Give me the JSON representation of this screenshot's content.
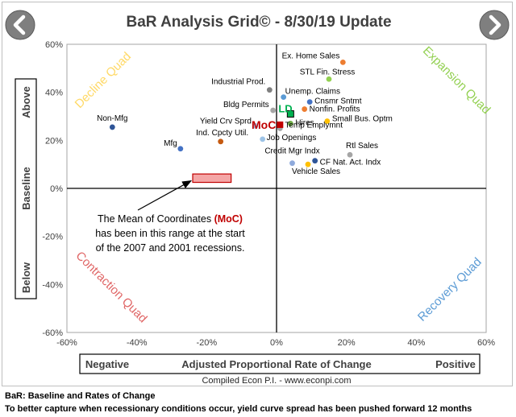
{
  "chart_data": {
    "type": "scatter",
    "title": "BaR Analysis Grid© - 8/30/19 Update",
    "xlabel": "Adjusted Proportional Rate of Change",
    "x_left_label": "Negative",
    "x_right_label": "Positive",
    "ylabel": "Baseline",
    "y_top_label": "Above",
    "y_bottom_label": "Below",
    "xlim": [
      -60,
      60
    ],
    "ylim": [
      -60,
      60
    ],
    "x_ticks": [
      "-60%",
      "-40%",
      "-20%",
      "0%",
      "20%",
      "40%",
      "60%"
    ],
    "y_ticks": [
      "60%",
      "40%",
      "20%",
      "0%",
      "-20%",
      "-40%",
      "-60%"
    ],
    "credit": "Compiled Econ P.I. - www.econpi.com",
    "quadrants": [
      {
        "label": "Expansion Quad",
        "color": "#92d050"
      },
      {
        "label": "Decline Quad",
        "color": "#ffd966"
      },
      {
        "label": "Contraction Quad",
        "color": "#e06666"
      },
      {
        "label": "Recovery Quad",
        "color": "#5b9bd5"
      }
    ],
    "points": [
      {
        "label": "Ex. Home Sales",
        "x": 19,
        "y": 52.5,
        "color": "#ed7d31"
      },
      {
        "label": "STL Fin. Stress",
        "x": 15,
        "y": 45.5,
        "color": "#92d050"
      },
      {
        "label": "Industrial Prod.",
        "x": -2,
        "y": 41,
        "color": "#808080"
      },
      {
        "label": "Unemp. Claims",
        "x": 2,
        "y": 38,
        "color": "#5b9bd5"
      },
      {
        "label": "Cnsmr Sntmt",
        "x": 9.5,
        "y": 36,
        "color": "#4472c4"
      },
      {
        "label": "Bldg Permits",
        "x": -1,
        "y": 32.5,
        "color": "#a5a5a5"
      },
      {
        "label": "Nonfin. Profits",
        "x": 8,
        "y": 33,
        "color": "#ed7d31"
      },
      {
        "label": "Small Bus. Optm",
        "x": 14.5,
        "y": 28,
        "color": "#ffc000"
      },
      {
        "label": "Hires",
        "x": 4,
        "y": 27,
        "color": "#70ad47"
      },
      {
        "label": "Temp Emplymnt",
        "x": 1,
        "y": 25,
        "color": "#a5a5a5"
      },
      {
        "label": "Non-Mfg",
        "x": -47,
        "y": 25.5,
        "color": "#2f5597"
      },
      {
        "label": "Yield Crv Sprd",
        "x": -6,
        "y": 26,
        "color": "#9dc3e6"
      },
      {
        "label": "Ind. Cpcty Util.",
        "x": -16,
        "y": 19.5,
        "color": "#c55a11"
      },
      {
        "label": "Job Openings",
        "x": -4,
        "y": 20.5,
        "color": "#9dc3e6"
      },
      {
        "label": "Mfg",
        "x": -27.5,
        "y": 16.5,
        "color": "#4472c4"
      },
      {
        "label": "Credit Mgr Indx",
        "x": 4.5,
        "y": 10.5,
        "color": "#8faadc"
      },
      {
        "label": "Rtl Sales",
        "x": 21,
        "y": 14,
        "color": "#a5a5a5"
      },
      {
        "label": "CF Nat. Act. Indx",
        "x": 11,
        "y": 11.5,
        "color": "#2f5597"
      },
      {
        "label": "Vehicle Sales",
        "x": 9,
        "y": 10,
        "color": "#ffc000"
      }
    ],
    "markers": [
      {
        "label": "MoC",
        "x": 1,
        "y": 26.5,
        "color": "#c00000"
      },
      {
        "label": "LD",
        "x": 4,
        "y": 31,
        "color": "#00b050"
      }
    ],
    "moc_range": {
      "x0": -24,
      "x1": -13,
      "y0": 2.5,
      "y1": 6
    },
    "annotation": {
      "lines": [
        "The Mean of Coordinates (MoC)",
        "has been in this range at the start",
        "of the 2007 and 2001 recessions."
      ],
      "highlight": "(MoC)"
    }
  },
  "footer": {
    "line1": "BaR: Baseline and Rates of Change",
    "line2": "To better capture when recessionary conditions occur, yield curve spread has been pushed forward 12 months"
  }
}
